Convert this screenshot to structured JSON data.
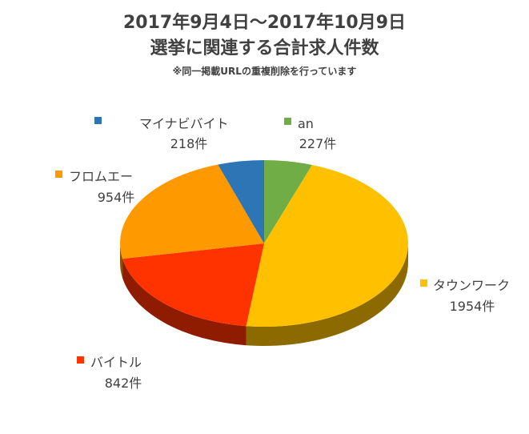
{
  "chart_data": {
    "type": "pie",
    "title": "2017年9月4日～2017年10月9日",
    "subtitle_main": "選挙に関連する合計求人件数",
    "note": "※同一掲載URLの重複削除を行っています",
    "unit": "件",
    "slices": [
      {
        "name": "an",
        "value": 227,
        "value_label": "227件",
        "color": "#70AD47",
        "side": "#4E7A32"
      },
      {
        "name": "タウンワーク",
        "value": 1954,
        "value_label": "1954件",
        "color": "#FFC000",
        "side": "#8C6A00"
      },
      {
        "name": "バイトル",
        "value": 842,
        "value_label": "842件",
        "color": "#FF3300",
        "side": "#8F1C00"
      },
      {
        "name": "フロムエー",
        "value": 954,
        "value_label": "954件",
        "color": "#FF9900",
        "side": "#8A5300"
      },
      {
        "name": "マイナビバイト",
        "value": 218,
        "value_label": "218件",
        "color": "#2E75B6",
        "side": "#1B4570"
      }
    ]
  }
}
